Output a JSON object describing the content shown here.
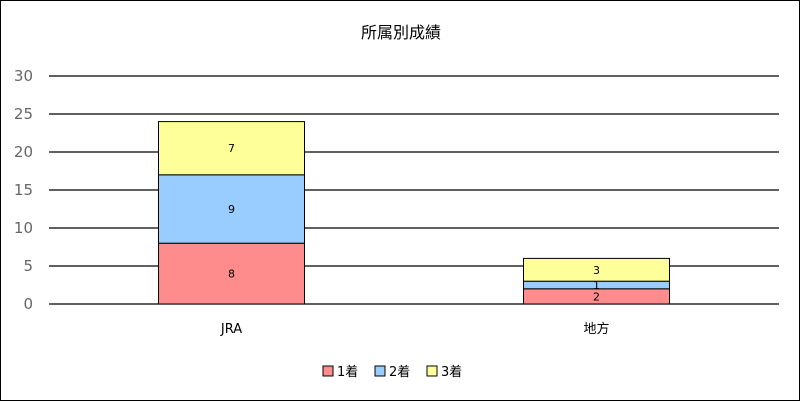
{
  "chart_data": {
    "type": "bar",
    "stacked": true,
    "title": "所属別成績",
    "xlabel": "",
    "ylabel": "",
    "categories": [
      "JRA",
      "地方"
    ],
    "series": [
      {
        "name": "1着",
        "values": [
          8,
          2
        ],
        "color": "#ff8c8c"
      },
      {
        "name": "2着",
        "values": [
          9,
          1
        ],
        "color": "#99ccff"
      },
      {
        "name": "3着",
        "values": [
          7,
          3
        ],
        "color": "#ffff99"
      }
    ],
    "ylim": [
      0,
      30
    ],
    "yticks": [
      0,
      5,
      10,
      15,
      20,
      25,
      30
    ],
    "grid": true,
    "legend_position": "bottom"
  }
}
